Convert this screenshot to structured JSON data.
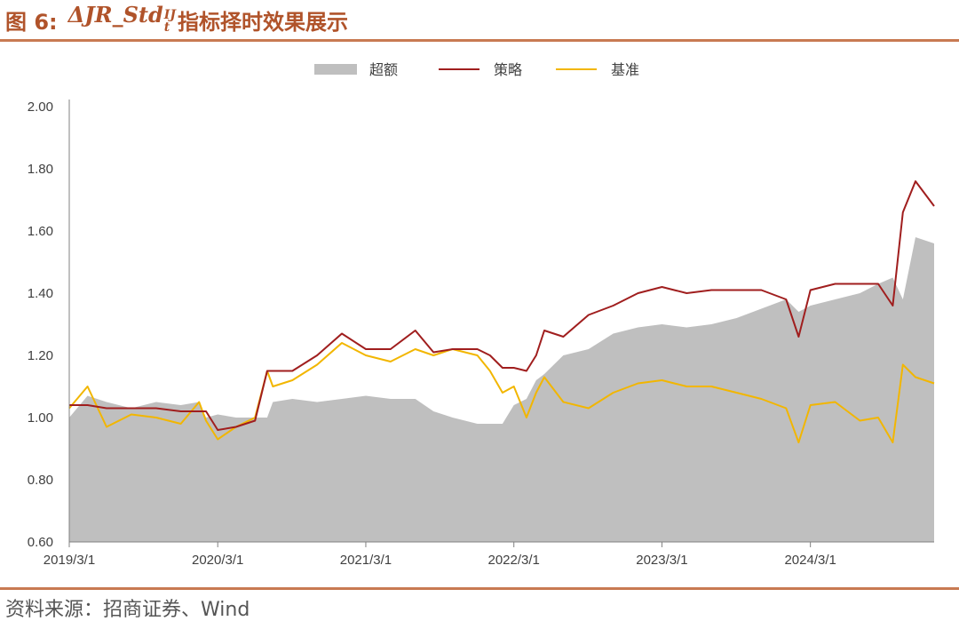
{
  "header": {
    "fig_label": "图 6:",
    "formula_main": "ΔJR_Std",
    "formula_sup": "IJ",
    "formula_sub": "t",
    "title_rest": "指标择时效果展示"
  },
  "footer": {
    "source": "资料来源：招商证券、Wind"
  },
  "colors": {
    "accent": "#c87a52",
    "excess": "#bfbfbf",
    "strategy": "#a01e1e",
    "benchmark": "#f2b600"
  },
  "chart_data": {
    "type": "line",
    "title": "",
    "xlabel": "",
    "ylabel": "",
    "ylim": [
      0.6,
      2.0
    ],
    "yticks": [
      "2.00",
      "1.80",
      "1.60",
      "1.40",
      "1.20",
      "1.00",
      "0.80",
      "0.60"
    ],
    "xticks": [
      "2019/3/1",
      "2020/3/1",
      "2021/3/1",
      "2022/3/1",
      "2023/3/1",
      "2024/3/1"
    ],
    "x_start": "2019/3/1",
    "x_end": "2024/12/31",
    "legend": [
      "超额",
      "策略",
      "基准"
    ],
    "legend_position": "top-center",
    "grid": false,
    "series": [
      {
        "name": "超额",
        "style": "area",
        "x": [
          "2019/3/1",
          "2019/4/15",
          "2019/6/1",
          "2019/8/1",
          "2019/10/1",
          "2019/12/1",
          "2020/1/15",
          "2020/2/1",
          "2020/3/1",
          "2020/4/15",
          "2020/6/1",
          "2020/7/1",
          "2020/7/15",
          "2020/9/1",
          "2020/11/1",
          "2021/1/1",
          "2021/3/1",
          "2021/5/1",
          "2021/7/1",
          "2021/8/15",
          "2021/10/1",
          "2021/12/1",
          "2022/1/1",
          "2022/2/1",
          "2022/3/1",
          "2022/4/1",
          "2022/4/25",
          "2022/5/15",
          "2022/7/1",
          "2022/9/1",
          "2022/11/1",
          "2023/1/1",
          "2023/3/1",
          "2023/5/1",
          "2023/7/1",
          "2023/9/1",
          "2023/11/1",
          "2024/1/1",
          "2024/2/1",
          "2024/3/1",
          "2024/5/1",
          "2024/7/1",
          "2024/8/15",
          "2024/9/20",
          "2024/10/15",
          "2024/11/15",
          "2024/12/31"
        ],
        "values": [
          1.0,
          1.07,
          1.05,
          1.03,
          1.05,
          1.04,
          1.05,
          1.0,
          1.01,
          1.0,
          1.0,
          1.0,
          1.05,
          1.06,
          1.05,
          1.06,
          1.07,
          1.06,
          1.06,
          1.02,
          1.0,
          0.98,
          0.98,
          0.98,
          1.04,
          1.06,
          1.12,
          1.14,
          1.2,
          1.22,
          1.27,
          1.29,
          1.3,
          1.29,
          1.3,
          1.32,
          1.35,
          1.38,
          1.34,
          1.36,
          1.38,
          1.4,
          1.43,
          1.45,
          1.38,
          1.58,
          1.56
        ]
      },
      {
        "name": "策略",
        "style": "line",
        "x": [
          "2019/3/1",
          "2019/4/15",
          "2019/6/1",
          "2019/8/1",
          "2019/10/1",
          "2019/12/1",
          "2020/1/15",
          "2020/2/1",
          "2020/3/1",
          "2020/4/15",
          "2020/6/1",
          "2020/7/1",
          "2020/7/15",
          "2020/9/1",
          "2020/11/1",
          "2021/1/1",
          "2021/3/1",
          "2021/5/1",
          "2021/7/1",
          "2021/8/15",
          "2021/10/1",
          "2021/12/1",
          "2022/1/1",
          "2022/2/1",
          "2022/3/1",
          "2022/4/1",
          "2022/4/25",
          "2022/5/15",
          "2022/7/1",
          "2022/9/1",
          "2022/11/1",
          "2023/1/1",
          "2023/3/1",
          "2023/5/1",
          "2023/7/1",
          "2023/9/1",
          "2023/11/1",
          "2024/1/1",
          "2024/2/1",
          "2024/3/1",
          "2024/5/1",
          "2024/7/1",
          "2024/8/15",
          "2024/9/20",
          "2024/10/15",
          "2024/11/15",
          "2024/12/31"
        ],
        "values": [
          1.04,
          1.04,
          1.03,
          1.03,
          1.03,
          1.02,
          1.02,
          1.02,
          0.96,
          0.97,
          0.99,
          1.15,
          1.15,
          1.15,
          1.2,
          1.27,
          1.22,
          1.22,
          1.28,
          1.21,
          1.22,
          1.22,
          1.2,
          1.16,
          1.16,
          1.15,
          1.2,
          1.28,
          1.26,
          1.33,
          1.36,
          1.4,
          1.42,
          1.4,
          1.41,
          1.41,
          1.41,
          1.38,
          1.26,
          1.41,
          1.43,
          1.43,
          1.43,
          1.36,
          1.66,
          1.76,
          1.68
        ]
      },
      {
        "name": "基准",
        "style": "line",
        "x": [
          "2019/3/1",
          "2019/4/15",
          "2019/6/1",
          "2019/8/1",
          "2019/10/1",
          "2019/12/1",
          "2020/1/15",
          "2020/2/1",
          "2020/3/1",
          "2020/4/15",
          "2020/6/1",
          "2020/7/1",
          "2020/7/15",
          "2020/9/1",
          "2020/11/1",
          "2021/1/1",
          "2021/3/1",
          "2021/5/1",
          "2021/7/1",
          "2021/8/15",
          "2021/10/1",
          "2021/12/1",
          "2022/1/1",
          "2022/2/1",
          "2022/3/1",
          "2022/4/1",
          "2022/4/25",
          "2022/5/15",
          "2022/7/1",
          "2022/9/1",
          "2022/11/1",
          "2023/1/1",
          "2023/3/1",
          "2023/5/1",
          "2023/7/1",
          "2023/9/1",
          "2023/11/1",
          "2024/1/1",
          "2024/2/1",
          "2024/3/1",
          "2024/5/1",
          "2024/7/1",
          "2024/8/15",
          "2024/9/20",
          "2024/10/15",
          "2024/11/15",
          "2024/12/31"
        ],
        "values": [
          1.03,
          1.1,
          0.97,
          1.01,
          1.0,
          0.98,
          1.05,
          0.99,
          0.93,
          0.97,
          1.0,
          1.15,
          1.1,
          1.12,
          1.17,
          1.24,
          1.2,
          1.18,
          1.22,
          1.2,
          1.22,
          1.2,
          1.15,
          1.08,
          1.1,
          1.0,
          1.08,
          1.13,
          1.05,
          1.03,
          1.08,
          1.11,
          1.12,
          1.1,
          1.1,
          1.08,
          1.06,
          1.03,
          0.92,
          1.04,
          1.05,
          0.99,
          1.0,
          0.92,
          1.17,
          1.13,
          1.11
        ]
      }
    ]
  }
}
